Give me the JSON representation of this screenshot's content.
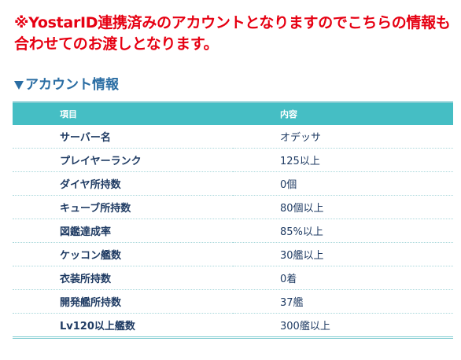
{
  "notice": "※YostarID連携済みのアカウントとなりますのでこちらの情報も合わせてのお渡しとなります。",
  "section": {
    "heading": "アカウント情報"
  },
  "table": {
    "header": {
      "item": "項目",
      "value": "内容"
    },
    "rows": [
      {
        "item": "サーバー名",
        "value": "オデッサ"
      },
      {
        "item": "プレイヤーランク",
        "value": "125以上"
      },
      {
        "item": "ダイヤ所持数",
        "value": "0個"
      },
      {
        "item": "キューブ所持数",
        "value": "80個以上"
      },
      {
        "item": "図鑑達成率",
        "value": "85%以上"
      },
      {
        "item": "ケッコン艦数",
        "value": "30艦以上"
      },
      {
        "item": "衣装所持数",
        "value": "0着"
      },
      {
        "item": "開発艦所持数",
        "value": "37艦"
      },
      {
        "item": "Lv120以上艦数",
        "value": "300艦以上"
      }
    ]
  },
  "colors": {
    "notice": "#e60012",
    "heading": "#2a6da3",
    "table_header": "#45bec4",
    "cell_text": "#1f3b63"
  },
  "icons": {
    "heading_marker": "triangle-down-icon"
  }
}
